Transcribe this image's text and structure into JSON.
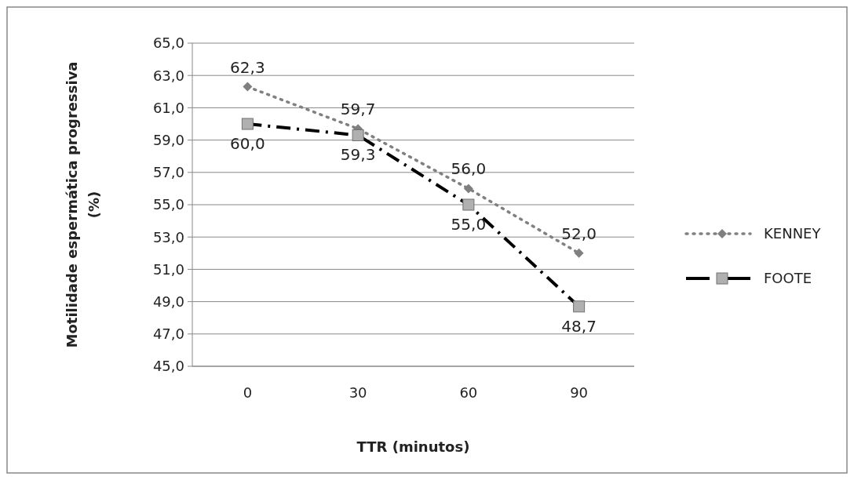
{
  "chart_data": {
    "type": "line",
    "xlabel": "TTR (minutos)",
    "ylabel": "Motilidade espermática progressiva (%)",
    "categories": [
      "0",
      "30",
      "60",
      "90"
    ],
    "ylim": [
      45,
      65
    ],
    "yticks": [
      {
        "value": 45,
        "label": "45,0"
      },
      {
        "value": 47,
        "label": "47,0"
      },
      {
        "value": 49,
        "label": "49,0"
      },
      {
        "value": 51,
        "label": "51,0"
      },
      {
        "value": 53,
        "label": "53,0"
      },
      {
        "value": 55,
        "label": "55,0"
      },
      {
        "value": 57,
        "label": "57,0"
      },
      {
        "value": 59,
        "label": "59,0"
      },
      {
        "value": 61,
        "label": "61,0"
      },
      {
        "value": 63,
        "label": "63,0"
      },
      {
        "value": 65,
        "label": "65,0"
      }
    ],
    "grid": "y",
    "legend": "right",
    "series": [
      {
        "name": "KENNEY",
        "color": "#808080",
        "values": [
          62.3,
          59.7,
          56.0,
          52.0
        ],
        "value_labels": [
          "62,3",
          "59,7",
          "56,0",
          "52,0"
        ],
        "marker": "diamond",
        "line_style": "dotted"
      },
      {
        "name": "FOOTE",
        "color": "#000000",
        "values": [
          60.0,
          59.3,
          55.0,
          48.7
        ],
        "value_labels": [
          "60,0",
          "59,3",
          "55,0",
          "48,7"
        ],
        "marker": "square",
        "line_style": "dashed"
      }
    ]
  }
}
